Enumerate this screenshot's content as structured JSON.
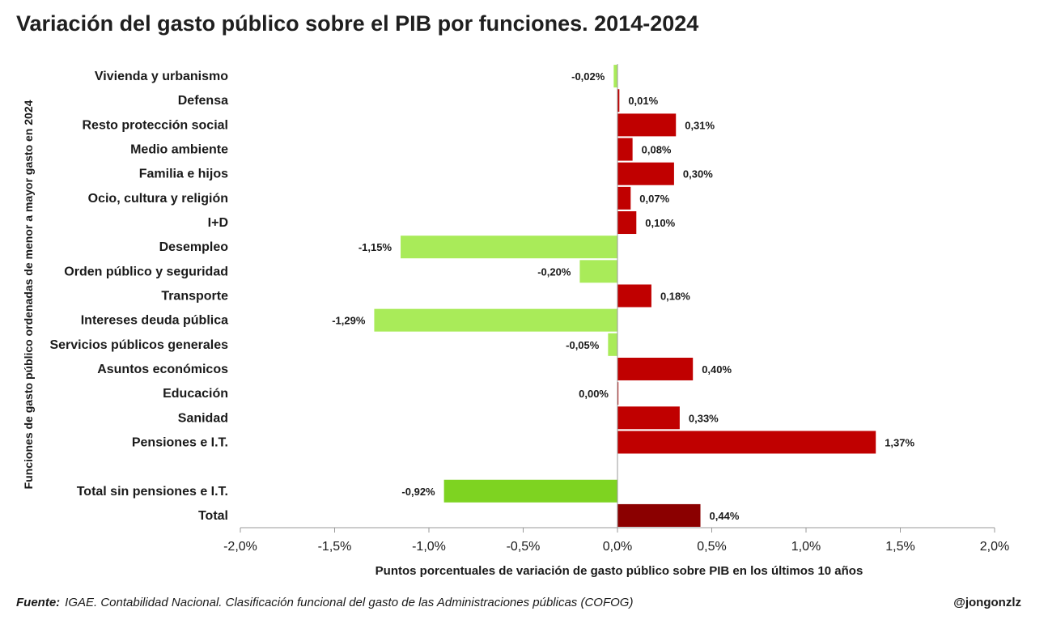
{
  "title": "Variación del gasto público sobre el PIB por funciones. 2014-2024",
  "footer": {
    "source_label": "Fuente:",
    "source_text": "IGAE. Contabilidad Nacional. Clasificación funcional del gasto de las Administraciones públicas (COFOG)",
    "handle": "@jongonzlz"
  },
  "chart_data": {
    "type": "bar",
    "orientation": "horizontal",
    "title": "Variación del gasto público sobre el PIB por funciones. 2014-2024",
    "xlabel": "Puntos porcentuales de variación de gasto público sobre PIB en los últimos  10 años",
    "ylabel": "Funciones de gasto público ordenadas de menor a mayor gasto en 2024",
    "xlim": [
      -2.0,
      2.0
    ],
    "xticks": [
      -2.0,
      -1.5,
      -1.0,
      -0.5,
      0.0,
      0.5,
      1.0,
      1.5,
      2.0
    ],
    "xtick_labels": [
      "-2,0%",
      "-1,5%",
      "-1,0%",
      "-0,5%",
      "0,0%",
      "0,5%",
      "1,0%",
      "1,5%",
      "2,0%"
    ],
    "grid": false,
    "categories": [
      "Vivienda y urbanismo",
      "Defensa",
      "Resto protección social",
      "Medio ambiente",
      "Familia e hijos",
      "Ocio, cultura y religión",
      "I+D",
      "Desempleo",
      "Orden público y seguridad",
      "Transporte",
      "Intereses deuda pública",
      "Servicios públicos generales",
      "Asuntos económicos",
      "Educación",
      "Sanidad",
      "Pensiones e I.T.",
      "",
      "Total sin pensiones e I.T.",
      "Total"
    ],
    "values": [
      -0.02,
      0.01,
      0.31,
      0.08,
      0.3,
      0.07,
      0.1,
      -1.15,
      -0.2,
      0.18,
      -1.29,
      -0.05,
      0.4,
      0.0,
      0.33,
      1.37,
      null,
      -0.92,
      0.44
    ],
    "data_labels": [
      "-0,02%",
      "0,01%",
      "0,31%",
      "0,08%",
      "0,30%",
      "0,07%",
      "0,10%",
      "-1,15%",
      "-0,20%",
      "0,18%",
      "-1,29%",
      "-0,05%",
      "0,40%",
      "0,00%",
      "0,33%",
      "1,37%",
      "",
      "-0,92%",
      "0,44%"
    ],
    "colors": {
      "positive": "#c00000",
      "negative": "#a9eb59",
      "total_positive": "#8b0000",
      "total_negative": "#7ed321",
      "axis": "#999999"
    },
    "totals": [
      "Total sin pensiones e I.T.",
      "Total"
    ]
  }
}
